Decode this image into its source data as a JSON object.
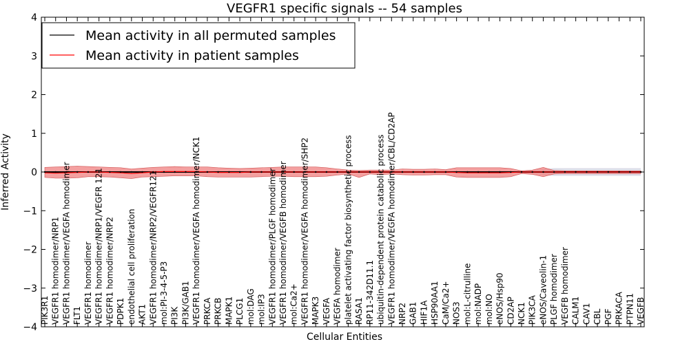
{
  "chart_data": {
    "type": "line",
    "title": "VEGFR1 specific signals -- 54 samples",
    "xlabel": "Cellular Entities",
    "ylabel": "Inferred Activity",
    "ylim": [
      -4,
      4
    ],
    "yticks": [
      4,
      3,
      2,
      1,
      0,
      -1,
      -2,
      -3,
      -4
    ],
    "ytick_labels": [
      "4",
      "3",
      "2",
      "1",
      "0",
      "−1",
      "−2",
      "−3",
      "−4"
    ],
    "legend_location": "top-left",
    "categories": [
      "PIK3R1",
      "VEGFR1 homodimer/NRP1",
      "VEGFR1 homodimer/VEGFA homodimer",
      "FLT1",
      "VEGFR1 homodimer",
      "VEGFR1 homodimer/NRP1/VEGFR 121",
      "VEGFR1 homodimer/NRP2",
      "PDPK1",
      "endothelial cell proliferation",
      "AKT1",
      "VEGFR1 homodimer/NRP2/VEGFR121",
      "mol:PI-3-4-5-P3",
      "PI3K",
      "PI3K/GAB1",
      "VEGFR1 homodimer/VEGFA homodimer/NCK1",
      "PRKCA",
      "PRKCB",
      "MAPK1",
      "PLCG1",
      "mol:DAG",
      "mol:IP3",
      "VEGFR1 homodimer/PLGF homodimer",
      "VEGFR1 homodimer/VEGFB homodimer",
      "mol:Ca2+",
      "VEGFR1 homodimer/VEGFA homodimer/SHP2",
      "MAPK3",
      "VEGFA",
      "VEGFA homodimer",
      "platelet activating factor biosynthetic process",
      "RASA1",
      "RP11-342D11.1",
      "ubiquitin-dependent protein catabolic process",
      "VEGFR1 homodimer/VEGFA homodimer/CBL/CD2AP",
      "NRP2",
      "GAB1",
      "HIF1A",
      "HSP90AA1",
      "CaM/Ca2+",
      "NOS3",
      "mol:L-citrulline",
      "mol:NADP",
      "mol:NO",
      "eNOS/Hsp90",
      "CD2AP",
      "NCK1",
      "PIK3CA",
      "eNOS/Caveolin-1",
      "PLGF homodimer",
      "VEGFB homodimer",
      "CALM1",
      "CAV1",
      "CBL",
      "PGF",
      "PRKACA",
      "PTPN11",
      "VEGFB"
    ],
    "series": [
      {
        "name": "Mean activity in all permuted samples",
        "color": "#000000",
        "values": [
          0,
          0,
          0,
          0,
          0,
          0,
          0,
          0,
          0,
          0,
          0,
          0,
          0,
          0,
          0,
          0,
          0,
          0,
          0,
          0,
          0,
          0,
          0,
          0,
          0,
          0,
          0,
          0,
          0,
          0,
          0,
          0,
          0,
          0,
          0,
          0,
          0,
          0,
          0,
          0,
          0,
          0,
          0,
          0,
          0,
          0,
          0,
          0,
          0,
          0,
          0,
          0,
          0,
          0,
          0,
          0
        ],
        "spread": [
          0.02,
          0.02,
          0.02,
          0.02,
          0.02,
          0.02,
          0.02,
          0.02,
          0.02,
          0.02,
          0.02,
          0.02,
          0.02,
          0.02,
          0.02,
          0.02,
          0.02,
          0.02,
          0.02,
          0.02,
          0.02,
          0.02,
          0.02,
          0.02,
          0.02,
          0.02,
          0.02,
          0.02,
          0.02,
          0.02,
          0.02,
          0.02,
          0.02,
          0.02,
          0.02,
          0.02,
          0.02,
          0.02,
          0.02,
          0.02,
          0.02,
          0.02,
          0.02,
          0.02,
          0.04,
          0.05,
          0.08,
          0.1,
          0.1,
          0.1,
          0.1,
          0.1,
          0.1,
          0.1,
          0.1,
          0.1
        ]
      },
      {
        "name": "Mean activity in patient samples",
        "color": "#ff0000",
        "fill": "#f08080",
        "values": [
          -0.02,
          -0.03,
          -0.02,
          -0.01,
          0,
          0,
          -0.01,
          -0.02,
          -0.04,
          -0.02,
          0,
          0.01,
          0.01,
          0.01,
          0.01,
          0,
          -0.01,
          -0.01,
          -0.01,
          0,
          0,
          0,
          0,
          0,
          0,
          0,
          0,
          0,
          0,
          0,
          0,
          0,
          0,
          0,
          0,
          0,
          0,
          0,
          -0.01,
          -0.02,
          -0.02,
          -0.02,
          -0.02,
          -0.01,
          0,
          0,
          0,
          0,
          0,
          0,
          0,
          0,
          0,
          0,
          0,
          0
        ],
        "upper": [
          0.12,
          0.13,
          0.14,
          0.15,
          0.14,
          0.13,
          0.12,
          0.11,
          0.08,
          0.1,
          0.12,
          0.13,
          0.14,
          0.13,
          0.13,
          0.13,
          0.11,
          0.1,
          0.09,
          0.1,
          0.11,
          0.12,
          0.13,
          0.13,
          0.13,
          0.13,
          0.11,
          0.08,
          0.05,
          0.04,
          0.05,
          0.05,
          0.05,
          0.08,
          0.07,
          0.07,
          0.08,
          0.06,
          0.11,
          0.11,
          0.11,
          0.11,
          0.11,
          0.09,
          0.03,
          0.05,
          0.12,
          0.04,
          0.03,
          0.03,
          0.03,
          0.03,
          0.03,
          0.03,
          0.03,
          0.03
        ],
        "lower": [
          -0.14,
          -0.16,
          -0.16,
          -0.15,
          -0.12,
          -0.12,
          -0.13,
          -0.15,
          -0.17,
          -0.13,
          -0.12,
          -0.11,
          -0.1,
          -0.1,
          -0.1,
          -0.12,
          -0.13,
          -0.13,
          -0.13,
          -0.13,
          -0.12,
          -0.11,
          -0.11,
          -0.12,
          -0.12,
          -0.12,
          -0.11,
          -0.08,
          -0.05,
          -0.14,
          -0.05,
          -0.07,
          -0.05,
          -0.07,
          -0.08,
          -0.08,
          -0.07,
          -0.07,
          -0.13,
          -0.14,
          -0.14,
          -0.14,
          -0.14,
          -0.12,
          -0.04,
          -0.06,
          -0.12,
          -0.05,
          -0.04,
          -0.04,
          -0.04,
          -0.04,
          -0.04,
          -0.04,
          -0.04,
          -0.04
        ]
      }
    ]
  }
}
